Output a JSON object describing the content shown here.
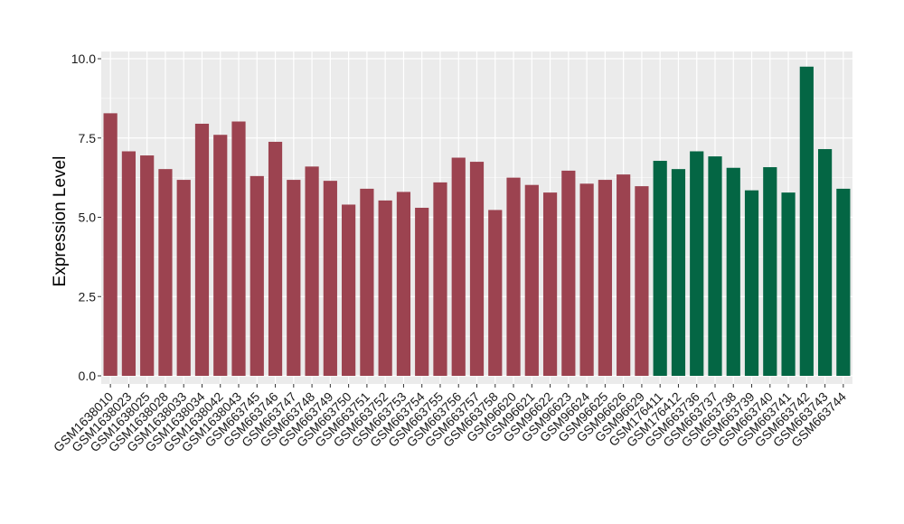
{
  "chart_data": {
    "type": "bar",
    "title": "",
    "xlabel": "",
    "ylabel": "Expression Level",
    "ylim": [
      0,
      10
    ],
    "yticks": [
      0.0,
      2.5,
      5.0,
      7.5,
      10.0
    ],
    "ytick_labels": [
      "0.0",
      "2.5",
      "5.0",
      "7.5",
      "10.0"
    ],
    "grid": true,
    "legend": "none",
    "colors": {
      "panel_bg": "#ebebeb",
      "grid": "#ffffff",
      "group1": "#9c4350",
      "group2": "#046644"
    },
    "categories": [
      "GSM1638010",
      "GSM1638023",
      "GSM1638025",
      "GSM1638028",
      "GSM1638033",
      "GSM1638034",
      "GSM1638042",
      "GSM1638043",
      "GSM663745",
      "GSM663746",
      "GSM663747",
      "GSM663748",
      "GSM663749",
      "GSM663750",
      "GSM663751",
      "GSM663752",
      "GSM663753",
      "GSM663754",
      "GSM663755",
      "GSM663756",
      "GSM663757",
      "GSM663758",
      "GSM96620",
      "GSM96621",
      "GSM96622",
      "GSM96623",
      "GSM96624",
      "GSM96625",
      "GSM96626",
      "GSM96629",
      "GSM176411",
      "GSM176412",
      "GSM663736",
      "GSM663737",
      "GSM663738",
      "GSM663739",
      "GSM663740",
      "GSM663741",
      "GSM663742",
      "GSM663743",
      "GSM663744"
    ],
    "values": [
      8.28,
      7.08,
      6.95,
      6.52,
      6.18,
      7.95,
      7.6,
      8.02,
      6.3,
      7.38,
      6.18,
      6.6,
      6.15,
      5.4,
      5.9,
      5.53,
      5.8,
      5.3,
      6.1,
      6.88,
      6.75,
      5.23,
      6.25,
      6.02,
      5.78,
      6.47,
      6.06,
      6.18,
      6.35,
      5.98,
      6.78,
      6.52,
      7.08,
      6.92,
      6.56,
      5.85,
      6.58,
      5.78,
      9.75,
      7.15,
      5.9
    ],
    "groups": [
      1,
      1,
      1,
      1,
      1,
      1,
      1,
      1,
      1,
      1,
      1,
      1,
      1,
      1,
      1,
      1,
      1,
      1,
      1,
      1,
      1,
      1,
      1,
      1,
      1,
      1,
      1,
      1,
      1,
      1,
      2,
      2,
      2,
      2,
      2,
      2,
      2,
      2,
      2,
      2,
      2
    ]
  }
}
